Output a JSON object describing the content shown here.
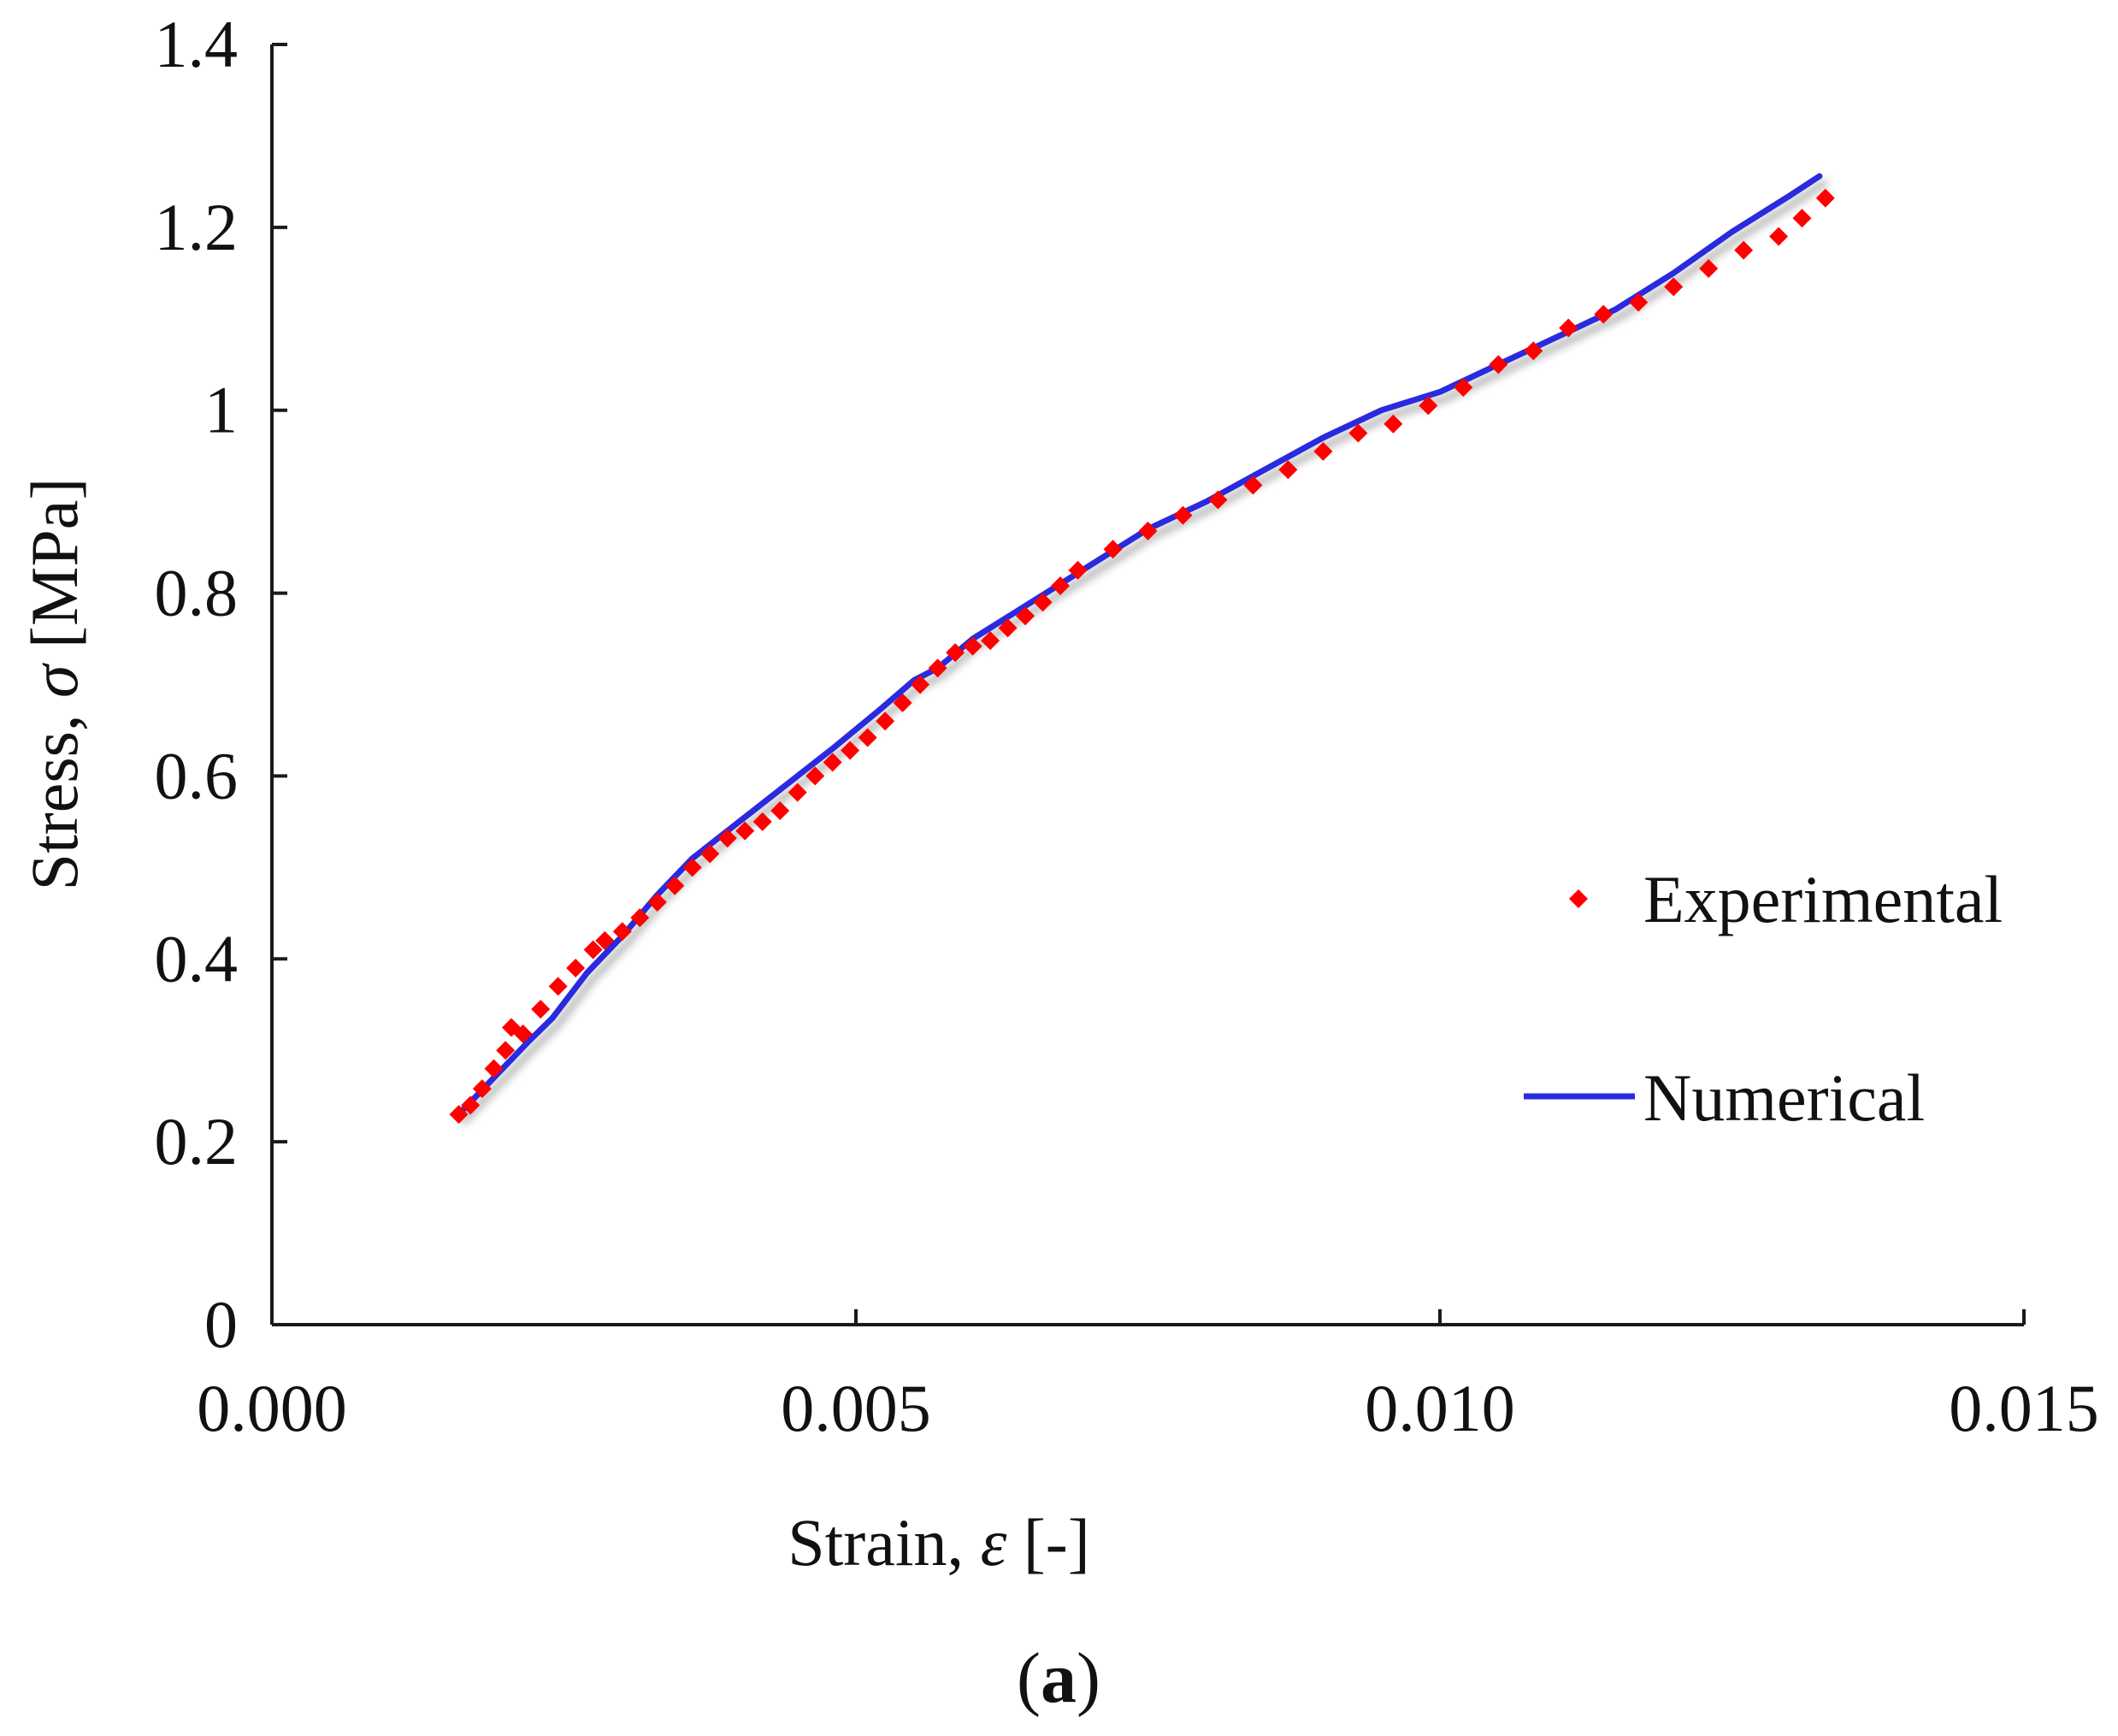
{
  "chart_data": {
    "type": "scatter",
    "title": "",
    "xlabel": "Strain, ε [-]",
    "xlabel_parts": {
      "name": "Strain, ",
      "symbol": "ε",
      "unit": " [-]"
    },
    "ylabel": "Stress, σ [MPa]",
    "ylabel_parts": {
      "name": "Stress, ",
      "symbol": "σ",
      "unit": " [MPa]"
    },
    "xlim": [
      0,
      0.015
    ],
    "ylim": [
      0,
      1.4
    ],
    "xticks": [
      0,
      0.005,
      0.01,
      0.015
    ],
    "xtick_labels": [
      "0.000",
      "0.005",
      "0.010",
      "0.015"
    ],
    "yticks": [
      0,
      0.2,
      0.4,
      0.6,
      0.8,
      1.0,
      1.2,
      1.4
    ],
    "ytick_labels": [
      "0",
      "0.2",
      "0.4",
      "0.6",
      "0.8",
      "1",
      "1.2",
      "1.4"
    ],
    "grid": false,
    "legend_position": "right",
    "panel_label": "(a)",
    "series": [
      {
        "name": "Experimental",
        "kind": "markers",
        "color": "#ff0000",
        "marker": "diamond",
        "points": [
          [
            0.0016,
            0.23
          ],
          [
            0.0017,
            0.24
          ],
          [
            0.0018,
            0.258
          ],
          [
            0.0019,
            0.28
          ],
          [
            0.002,
            0.3
          ],
          [
            0.00205,
            0.325
          ],
          [
            0.00215,
            0.318
          ],
          [
            0.0023,
            0.345
          ],
          [
            0.00245,
            0.37
          ],
          [
            0.0026,
            0.39
          ],
          [
            0.00275,
            0.41
          ],
          [
            0.00285,
            0.42
          ],
          [
            0.003,
            0.43
          ],
          [
            0.00315,
            0.445
          ],
          [
            0.0033,
            0.462
          ],
          [
            0.00345,
            0.48
          ],
          [
            0.0036,
            0.5
          ],
          [
            0.00375,
            0.515
          ],
          [
            0.0039,
            0.532
          ],
          [
            0.00405,
            0.54
          ],
          [
            0.0042,
            0.55
          ],
          [
            0.00435,
            0.562
          ],
          [
            0.0045,
            0.582
          ],
          [
            0.00465,
            0.6
          ],
          [
            0.0048,
            0.615
          ],
          [
            0.00495,
            0.628
          ],
          [
            0.0051,
            0.642
          ],
          [
            0.00525,
            0.66
          ],
          [
            0.0054,
            0.68
          ],
          [
            0.00555,
            0.7
          ],
          [
            0.0057,
            0.718
          ],
          [
            0.00585,
            0.735
          ],
          [
            0.006,
            0.742
          ],
          [
            0.00615,
            0.748
          ],
          [
            0.0063,
            0.762
          ],
          [
            0.00645,
            0.775
          ],
          [
            0.0066,
            0.79
          ],
          [
            0.00675,
            0.808
          ],
          [
            0.0069,
            0.825
          ],
          [
            0.0072,
            0.848
          ],
          [
            0.0075,
            0.868
          ],
          [
            0.0078,
            0.885
          ],
          [
            0.0081,
            0.902
          ],
          [
            0.0084,
            0.918
          ],
          [
            0.0087,
            0.935
          ],
          [
            0.009,
            0.955
          ],
          [
            0.0093,
            0.975
          ],
          [
            0.0096,
            0.985
          ],
          [
            0.0099,
            1.005
          ],
          [
            0.0102,
            1.025
          ],
          [
            0.0105,
            1.05
          ],
          [
            0.0108,
            1.065
          ],
          [
            0.0111,
            1.09
          ],
          [
            0.0114,
            1.105
          ],
          [
            0.0117,
            1.118
          ],
          [
            0.012,
            1.135
          ],
          [
            0.0123,
            1.155
          ],
          [
            0.0126,
            1.175
          ],
          [
            0.0129,
            1.19
          ],
          [
            0.0131,
            1.21
          ],
          [
            0.0133,
            1.232
          ]
        ]
      },
      {
        "name": "Numerical",
        "kind": "line",
        "color": "#2b2bde",
        "points": [
          [
            0.0016,
            0.23
          ],
          [
            0.0019,
            0.27
          ],
          [
            0.0022,
            0.31
          ],
          [
            0.0024,
            0.335
          ],
          [
            0.0027,
            0.385
          ],
          [
            0.003,
            0.425
          ],
          [
            0.0033,
            0.47
          ],
          [
            0.0036,
            0.51
          ],
          [
            0.004,
            0.55
          ],
          [
            0.0044,
            0.59
          ],
          [
            0.0048,
            0.63
          ],
          [
            0.0052,
            0.672
          ],
          [
            0.0055,
            0.705
          ],
          [
            0.0057,
            0.718
          ],
          [
            0.006,
            0.75
          ],
          [
            0.0065,
            0.79
          ],
          [
            0.007,
            0.83
          ],
          [
            0.0075,
            0.87
          ],
          [
            0.008,
            0.9
          ],
          [
            0.0085,
            0.935
          ],
          [
            0.009,
            0.97
          ],
          [
            0.0095,
            1.0
          ],
          [
            0.01,
            1.02
          ],
          [
            0.0105,
            1.05
          ],
          [
            0.011,
            1.08
          ],
          [
            0.0115,
            1.11
          ],
          [
            0.012,
            1.15
          ],
          [
            0.0125,
            1.195
          ],
          [
            0.013,
            1.235
          ],
          [
            0.01325,
            1.256
          ]
        ]
      }
    ]
  }
}
